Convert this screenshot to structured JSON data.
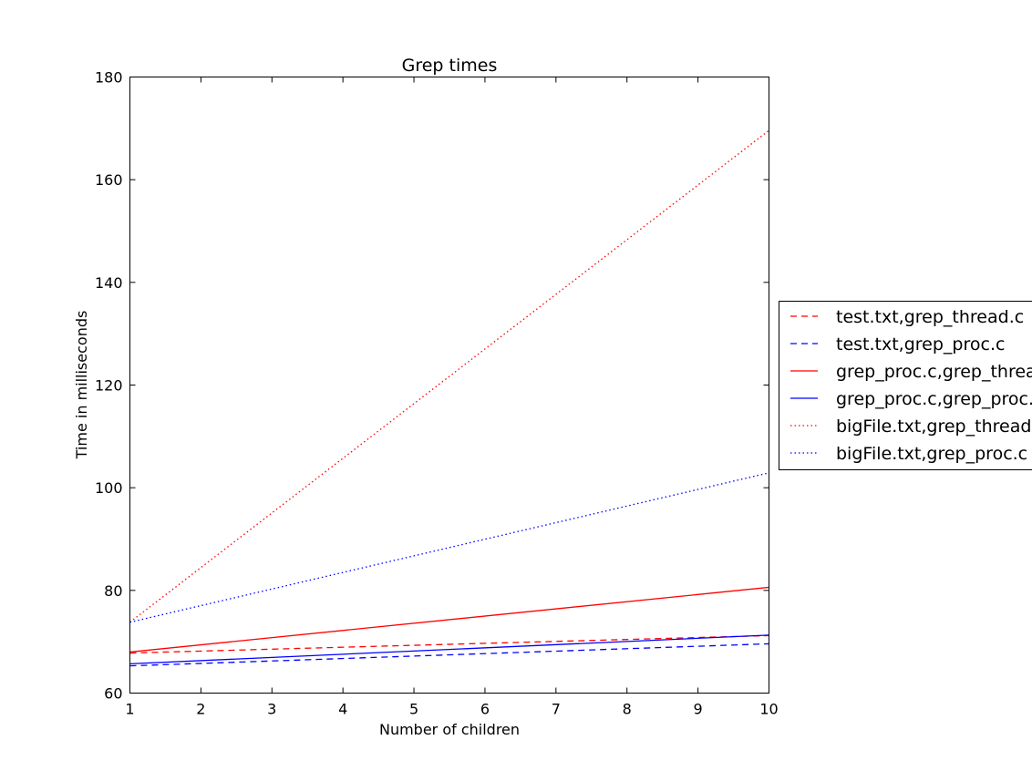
{
  "chart_data": {
    "type": "line",
    "title": "Grep times",
    "xlabel": "Number of children",
    "ylabel": "Time in milliseconds",
    "xlim": [
      1,
      10
    ],
    "ylim": [
      60,
      180
    ],
    "xticks": [
      "1",
      "2",
      "3",
      "4",
      "5",
      "6",
      "7",
      "8",
      "9",
      "10"
    ],
    "yticks": [
      "60",
      "80",
      "100",
      "120",
      "140",
      "160",
      "180"
    ],
    "grid": false,
    "legend_placement": "right, outside plot",
    "series": [
      {
        "name": "test.txt,grep_thread.c",
        "color": "#ff0000",
        "style": "dashed",
        "x": [
          1,
          10
        ],
        "y": [
          67.8,
          71.2
        ]
      },
      {
        "name": "test.txt,grep_proc.c",
        "color": "#0000ff",
        "style": "dashed",
        "x": [
          1,
          10
        ],
        "y": [
          65.3,
          69.6
        ]
      },
      {
        "name": "grep_proc.c,grep_thread.c",
        "color": "#ff0000",
        "style": "solid",
        "x": [
          1,
          10
        ],
        "y": [
          68.0,
          80.6
        ]
      },
      {
        "name": "grep_proc.c,grep_proc.c",
        "color": "#0000ff",
        "style": "solid",
        "x": [
          1,
          10
        ],
        "y": [
          65.7,
          71.3
        ]
      },
      {
        "name": "bigFile.txt,grep_thread.c",
        "color": "#ff0000",
        "style": "dotted",
        "x": [
          1,
          10
        ],
        "y": [
          73.8,
          169.6
        ]
      },
      {
        "name": "bigFile.txt,grep_proc.c",
        "color": "#0000ff",
        "style": "dotted",
        "x": [
          1,
          10
        ],
        "y": [
          73.8,
          102.9
        ]
      }
    ]
  }
}
